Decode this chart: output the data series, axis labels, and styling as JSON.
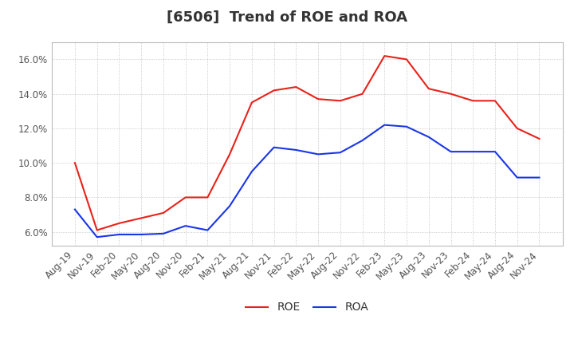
{
  "title": "[6506]  Trend of ROE and ROA",
  "roe_data": [
    [
      "Aug-19",
      10.0
    ],
    [
      "Nov-19",
      6.1
    ],
    [
      "Feb-20",
      6.5
    ],
    [
      "May-20",
      6.8
    ],
    [
      "Aug-20",
      7.1
    ],
    [
      "Nov-20",
      8.0
    ],
    [
      "Feb-21",
      8.0
    ],
    [
      "May-21",
      10.5
    ],
    [
      "Aug-21",
      13.5
    ],
    [
      "Nov-21",
      14.2
    ],
    [
      "Feb-22",
      14.4
    ],
    [
      "May-22",
      13.7
    ],
    [
      "Aug-22",
      13.6
    ],
    [
      "Nov-22",
      14.0
    ],
    [
      "Feb-23",
      16.2
    ],
    [
      "May-23",
      16.0
    ],
    [
      "Aug-23",
      14.3
    ],
    [
      "Nov-23",
      14.0
    ],
    [
      "Feb-24",
      13.6
    ],
    [
      "May-24",
      13.6
    ],
    [
      "Aug-24",
      12.0
    ],
    [
      "Nov-24",
      11.4
    ]
  ],
  "roa_data": [
    [
      "Aug-19",
      7.3
    ],
    [
      "Nov-19",
      5.7
    ],
    [
      "Feb-20",
      5.85
    ],
    [
      "May-20",
      5.85
    ],
    [
      "Aug-20",
      5.9
    ],
    [
      "Nov-20",
      6.35
    ],
    [
      "Feb-21",
      6.1
    ],
    [
      "May-21",
      7.5
    ],
    [
      "Aug-21",
      9.5
    ],
    [
      "Nov-21",
      10.9
    ],
    [
      "Feb-22",
      10.75
    ],
    [
      "May-22",
      10.5
    ],
    [
      "Aug-22",
      10.6
    ],
    [
      "Nov-22",
      11.3
    ],
    [
      "Feb-23",
      12.2
    ],
    [
      "May-23",
      12.1
    ],
    [
      "Aug-23",
      11.5
    ],
    [
      "Nov-23",
      10.65
    ],
    [
      "Feb-24",
      10.65
    ],
    [
      "May-24",
      10.65
    ],
    [
      "Aug-24",
      9.15
    ],
    [
      "Nov-24",
      9.15
    ]
  ],
  "roe_color": "#e8221a",
  "roa_color": "#1a35e8",
  "background_color": "#ffffff",
  "grid_color": "#aaaaaa",
  "yticks": [
    6.0,
    8.0,
    10.0,
    12.0,
    14.0,
    16.0
  ],
  "ylim": [
    5.2,
    17.0
  ],
  "title_fontsize": 13,
  "legend_fontsize": 10,
  "tick_fontsize": 8.5,
  "title_color": "#333333"
}
